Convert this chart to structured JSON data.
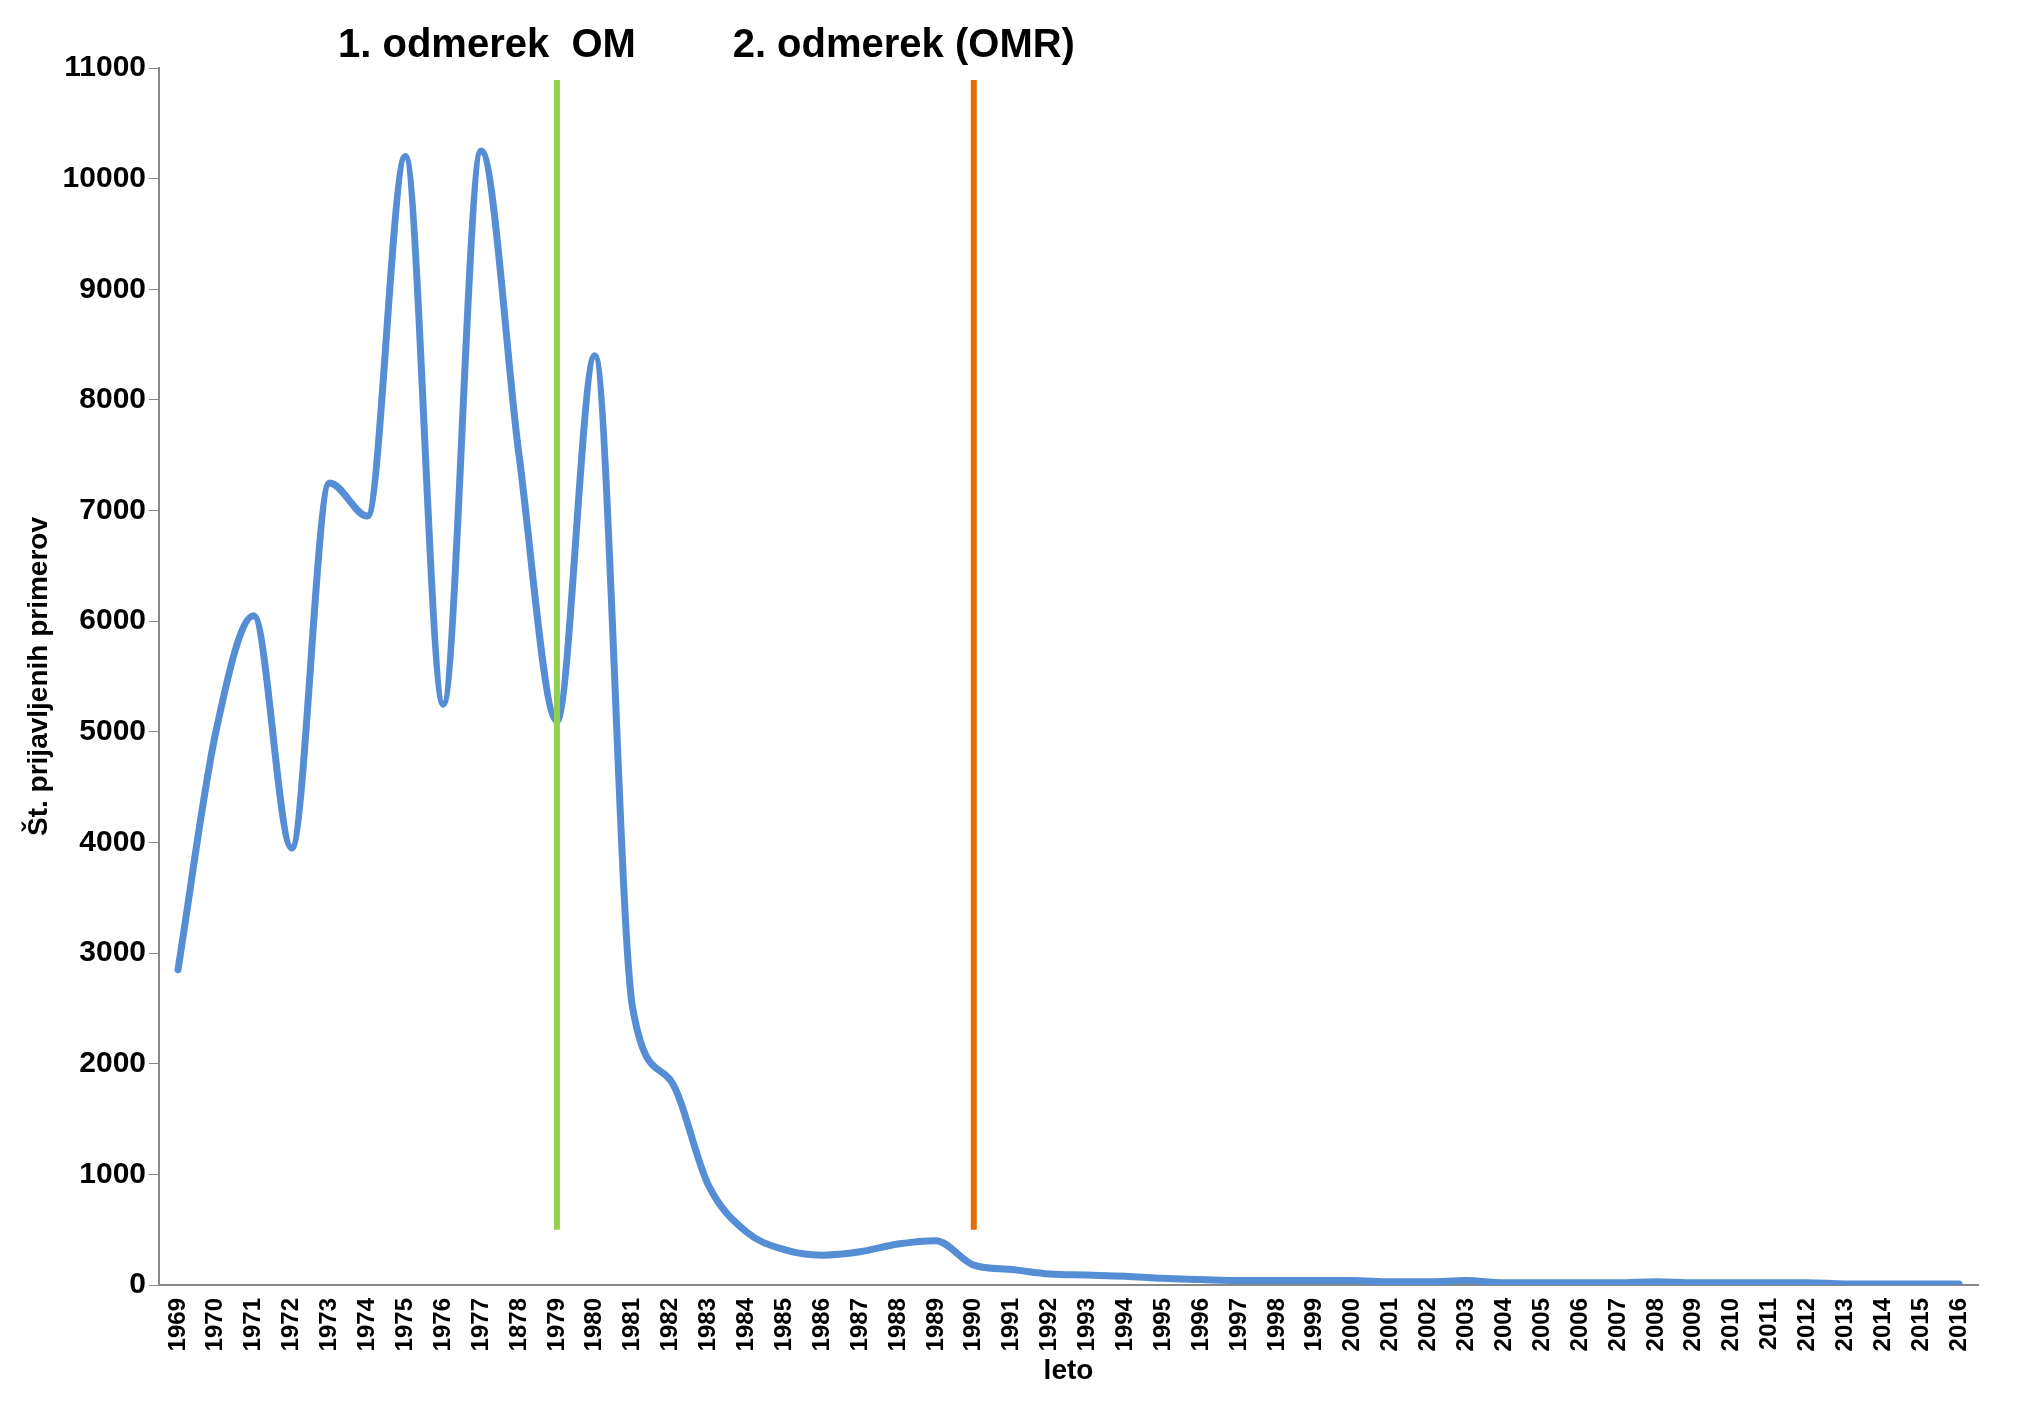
{
  "chart_data": {
    "type": "line",
    "xlabel": "leto",
    "ylabel": "Št. prijavljenih primerov",
    "categories": [
      "1969",
      "1970",
      "1971",
      "1972",
      "1973",
      "1974",
      "1975",
      "1976",
      "1977",
      "1878",
      "1979",
      "1980",
      "1981",
      "1982",
      "1983",
      "1984",
      "1985",
      "1986",
      "1987",
      "1988",
      "1989",
      "1990",
      "1991",
      "1992",
      "1993",
      "1994",
      "1995",
      "1996",
      "1997",
      "1998",
      "1999",
      "2000",
      "2001",
      "2002",
      "2003",
      "2004",
      "2005",
      "2006",
      "2007",
      "2008",
      "2009",
      "2010",
      "2011",
      "2012",
      "2013",
      "2014",
      "2015",
      "2016"
    ],
    "series": [
      {
        "color": "#558ed5",
        "values": [
          2850,
          5000,
          6050,
          3950,
          7250,
          6950,
          10200,
          5250,
          10250,
          7500,
          5100,
          8400,
          2500,
          1850,
          900,
          480,
          320,
          270,
          300,
          370,
          400,
          180,
          140,
          100,
          90,
          80,
          60,
          50,
          40,
          40,
          40,
          40,
          30,
          30,
          40,
          20,
          20,
          20,
          20,
          30,
          20,
          20,
          20,
          20,
          10,
          10,
          10,
          10
        ]
      }
    ],
    "ylim": [
      0,
      11000
    ],
    "yticks": [
      0,
      1000,
      2000,
      3000,
      4000,
      5000,
      6000,
      7000,
      8000,
      9000,
      10000,
      11000
    ],
    "grid": false,
    "legend": false,
    "marker": "none",
    "line_style": "solid",
    "ref_lines": [
      {
        "axis": "x",
        "value": "1979",
        "label": "1. odmerek  OM",
        "color": "#92d050"
      },
      {
        "axis": "x",
        "value": "1990",
        "label": "2. odmerek (OMR)",
        "color": "#e36c09"
      }
    ]
  }
}
